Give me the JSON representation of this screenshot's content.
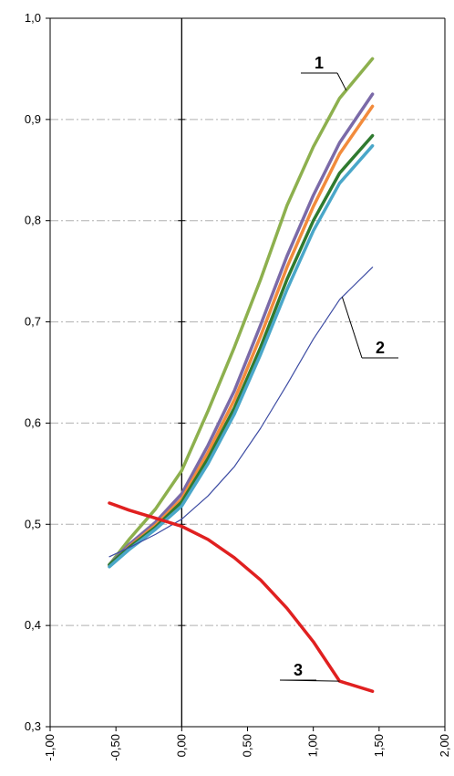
{
  "chart_data": {
    "type": "line",
    "title": "",
    "xlabel": "",
    "ylabel": "",
    "xlim": [
      -1.0,
      2.0
    ],
    "ylim": [
      0.3,
      1.0
    ],
    "x_ticks": [
      "-1,00",
      "-0,50",
      "0,00",
      "0,50",
      "1,00",
      "1,50",
      "2,00"
    ],
    "y_ticks": [
      "0,3",
      "0,4",
      "0,5",
      "0,6",
      "0,7",
      "0,8",
      "0,9",
      "1,0"
    ],
    "grid": "horizontal dash-dot",
    "legend": "none",
    "x": [
      -0.55,
      -0.4,
      -0.2,
      0.0,
      0.2,
      0.4,
      0.6,
      0.8,
      1.0,
      1.2,
      1.45
    ],
    "series": [
      {
        "color": "#8db04e",
        "width": 3.5,
        "values": [
          0.46,
          0.485,
          0.515,
          0.553,
          0.612,
          0.675,
          0.742,
          0.815,
          0.873,
          0.921,
          0.96
        ]
      },
      {
        "color": "#7b6aa8",
        "width": 3.5,
        "values": [
          0.46,
          0.48,
          0.502,
          0.53,
          0.578,
          0.632,
          0.697,
          0.765,
          0.825,
          0.877,
          0.925
        ]
      },
      {
        "color": "#f28b3c",
        "width": 3.5,
        "values": [
          0.459,
          0.478,
          0.499,
          0.525,
          0.571,
          0.623,
          0.686,
          0.754,
          0.814,
          0.866,
          0.913
        ]
      },
      {
        "color": "#2f7a2f",
        "width": 3.5,
        "values": [
          0.46,
          0.477,
          0.497,
          0.522,
          0.565,
          0.615,
          0.675,
          0.742,
          0.8,
          0.847,
          0.884
        ]
      },
      {
        "color": "#4aa7c9",
        "width": 3.5,
        "values": [
          0.458,
          0.475,
          0.495,
          0.518,
          0.56,
          0.609,
          0.668,
          0.732,
          0.79,
          0.837,
          0.874
        ]
      },
      {
        "color": "#3d4ca3",
        "width": 1.2,
        "values": [
          0.468,
          0.477,
          0.49,
          0.505,
          0.528,
          0.557,
          0.595,
          0.638,
          0.683,
          0.722,
          0.754
        ]
      },
      {
        "color": "#e02020",
        "width": 3.5,
        "values": [
          0.521,
          0.514,
          0.506,
          0.498,
          0.485,
          0.467,
          0.445,
          0.417,
          0.384,
          0.345,
          0.335
        ]
      }
    ],
    "annotations": [
      {
        "text": "1",
        "series_index": 0,
        "at_x": 1.25
      },
      {
        "text": "2",
        "series_index": 5,
        "at_x": 1.22
      },
      {
        "text": "3",
        "series_index": 6,
        "at_x": 1.2
      }
    ]
  }
}
